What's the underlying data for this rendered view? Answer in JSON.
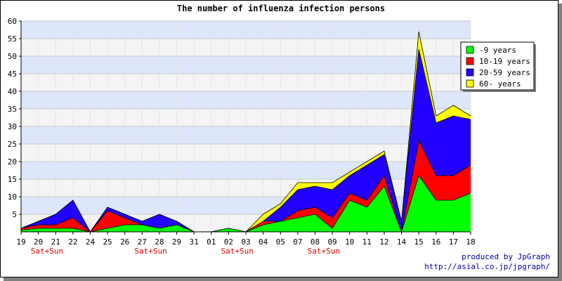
{
  "chart_data": {
    "type": "area",
    "stacked": true,
    "title": "The number of influenza infection persons",
    "xlabel": "",
    "ylabel": "",
    "ylim": [
      0,
      60
    ],
    "yticks": [
      5,
      10,
      15,
      20,
      25,
      30,
      35,
      40,
      45,
      50,
      55,
      60
    ],
    "grid": true,
    "legend_position": "top-right",
    "categories": [
      "19",
      "20",
      "21",
      "22",
      "24",
      "25",
      "26",
      "27",
      "28",
      "29",
      "31",
      "01",
      "02",
      "03",
      "04",
      "05",
      "07",
      "08",
      "09",
      "10",
      "11",
      "12",
      "14",
      "15",
      "16",
      "17",
      "18"
    ],
    "weekend_marks": [
      {
        "category_index": 1,
        "text": "Sat+Sun"
      },
      {
        "category_index": 7,
        "text": "Sat+Sun"
      },
      {
        "category_index": 12,
        "text": "Sat+Sun"
      },
      {
        "category_index": 17,
        "text": "Sat+Sun"
      }
    ],
    "series": [
      {
        "name": "-9 years",
        "color": "#00ff00",
        "values": [
          0.5,
          1,
          1,
          1,
          0,
          1,
          2,
          2,
          1,
          2,
          0,
          0,
          1,
          0,
          2,
          3,
          4,
          5,
          1,
          9,
          7,
          13,
          0,
          16,
          9,
          9,
          11
        ]
      },
      {
        "name": "10-19 years",
        "color": "#ff0000",
        "values": [
          0.5,
          1,
          1,
          3,
          0,
          5,
          2,
          0,
          0,
          0,
          0,
          0,
          0,
          0,
          1,
          0,
          2,
          2,
          3,
          2,
          2,
          3,
          0,
          10,
          7,
          7,
          8
        ]
      },
      {
        "name": "20-59 years",
        "color": "#2200ff",
        "values": [
          0,
          1,
          3,
          5,
          0,
          1,
          1,
          1,
          4,
          1,
          0,
          0,
          0,
          0,
          0,
          4,
          6,
          6,
          8,
          5,
          10,
          6,
          3,
          26,
          15,
          17,
          13
        ]
      },
      {
        "name": "60- years",
        "color": "#ffff00",
        "values": [
          0,
          0,
          0,
          0,
          0,
          0,
          0,
          0,
          0,
          0,
          0,
          0,
          0,
          0,
          2,
          1,
          2,
          1,
          2,
          1,
          1,
          1,
          0,
          5,
          2,
          3,
          1
        ]
      }
    ]
  },
  "credit": {
    "line1": "produced by JpGraph",
    "line2": "http://asial.co.jp/jpgraph/"
  }
}
